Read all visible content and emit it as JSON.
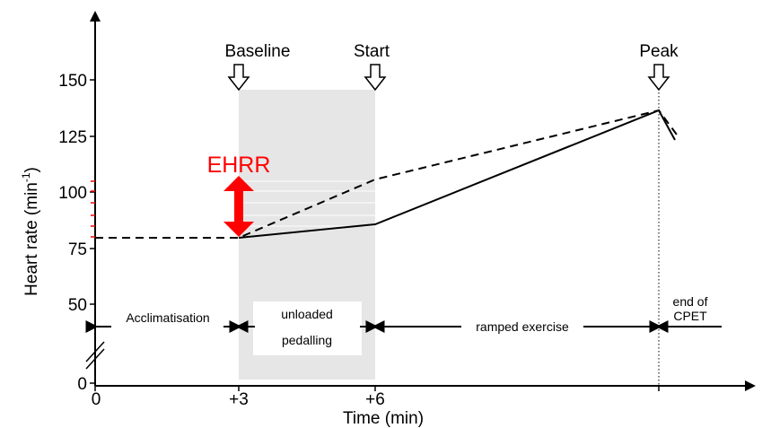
{
  "chart_data": {
    "type": "line",
    "ylabel": "Heart rate (min",
    "ylabel_superscript": "-1",
    "ylabel_close": ")",
    "xlabel": "Time (min)",
    "y_ticks": [
      "150",
      "125",
      "100",
      "75",
      "50",
      "0"
    ],
    "x_ticks": [
      "0",
      "+3",
      "+6"
    ],
    "markers": [
      "Baseline",
      "Start",
      "Peak"
    ],
    "annotation": "EHRR",
    "phases": [
      "Acclimatisation",
      "unloaded",
      "pedalling",
      "ramped exercise",
      "end of",
      "CPET"
    ],
    "series": [
      {
        "style": "dashed",
        "points": [
          [
            0,
            80
          ],
          [
            3,
            80
          ],
          [
            6,
            105
          ],
          [
            12.2,
            136
          ],
          [
            12.9,
            126
          ]
        ]
      },
      {
        "style": "solid",
        "points": [
          [
            3,
            80
          ],
          [
            6,
            85
          ],
          [
            12.2,
            136
          ],
          [
            12.8,
            124
          ]
        ]
      }
    ],
    "colors": {
      "ehrr": "#ff0000",
      "shade": "#e6e6e6",
      "line": "#000000"
    }
  }
}
